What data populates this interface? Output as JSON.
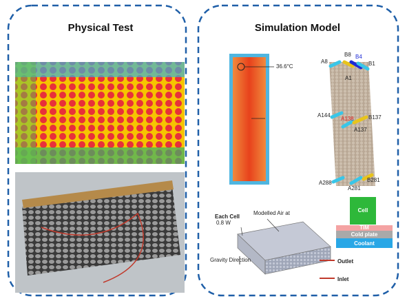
{
  "panels": [
    {
      "title": "Physical Test"
    },
    {
      "title": "Simulation Model"
    }
  ],
  "thermal_label": "36.6°C",
  "cell_labels": [
    "A8",
    "B8",
    "B4",
    "B1",
    "A1",
    "A144",
    "A138",
    "B137",
    "A137",
    "A288",
    "A281",
    "B281"
  ],
  "model": {
    "each_cell": "Each Cell",
    "power": "0.8 W",
    "air": "Modelled Air at",
    "gravity": "Gravity Direction",
    "outlet": "Outlet",
    "inlet": "Inlet"
  },
  "layers": [
    "Cell",
    "TIM",
    "Cold plate",
    "Coolant"
  ]
}
